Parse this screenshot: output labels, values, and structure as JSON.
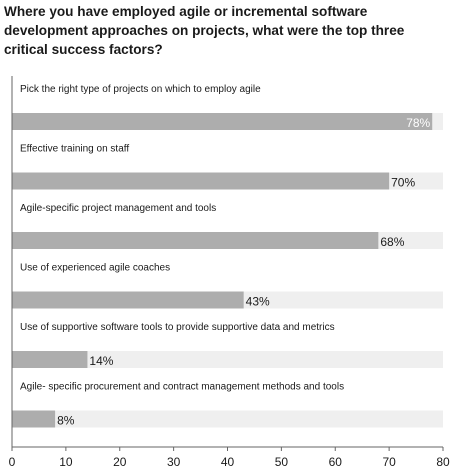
{
  "title": "Where you have employed agile or incremental software development approaches on projects, what were the top three critical success factors?",
  "chart_data": {
    "type": "bar",
    "orientation": "horizontal",
    "categories": [
      "Pick the right type of projects on which to employ agile",
      "Effective training on staff",
      "Agile-specific project management and tools",
      "Use of experienced agile coaches",
      "Use of supportive software tools to provide supportive data and metrics",
      "Agile- specific procurement and contract management methods and tools"
    ],
    "values": [
      78,
      70,
      68,
      43,
      14,
      8
    ],
    "value_labels": [
      "78%",
      "70%",
      "68%",
      "43%",
      "14%",
      "8%"
    ],
    "xlim": [
      0,
      80
    ],
    "xticks": [
      0,
      10,
      20,
      30,
      40,
      50,
      60,
      70,
      80
    ],
    "xlabel": "",
    "ylabel": "",
    "grid": false,
    "legend": "none",
    "colors": {
      "bar": "#adadad",
      "track": "#efefef",
      "axis": "#666666",
      "text": "#1a1a1a"
    }
  }
}
